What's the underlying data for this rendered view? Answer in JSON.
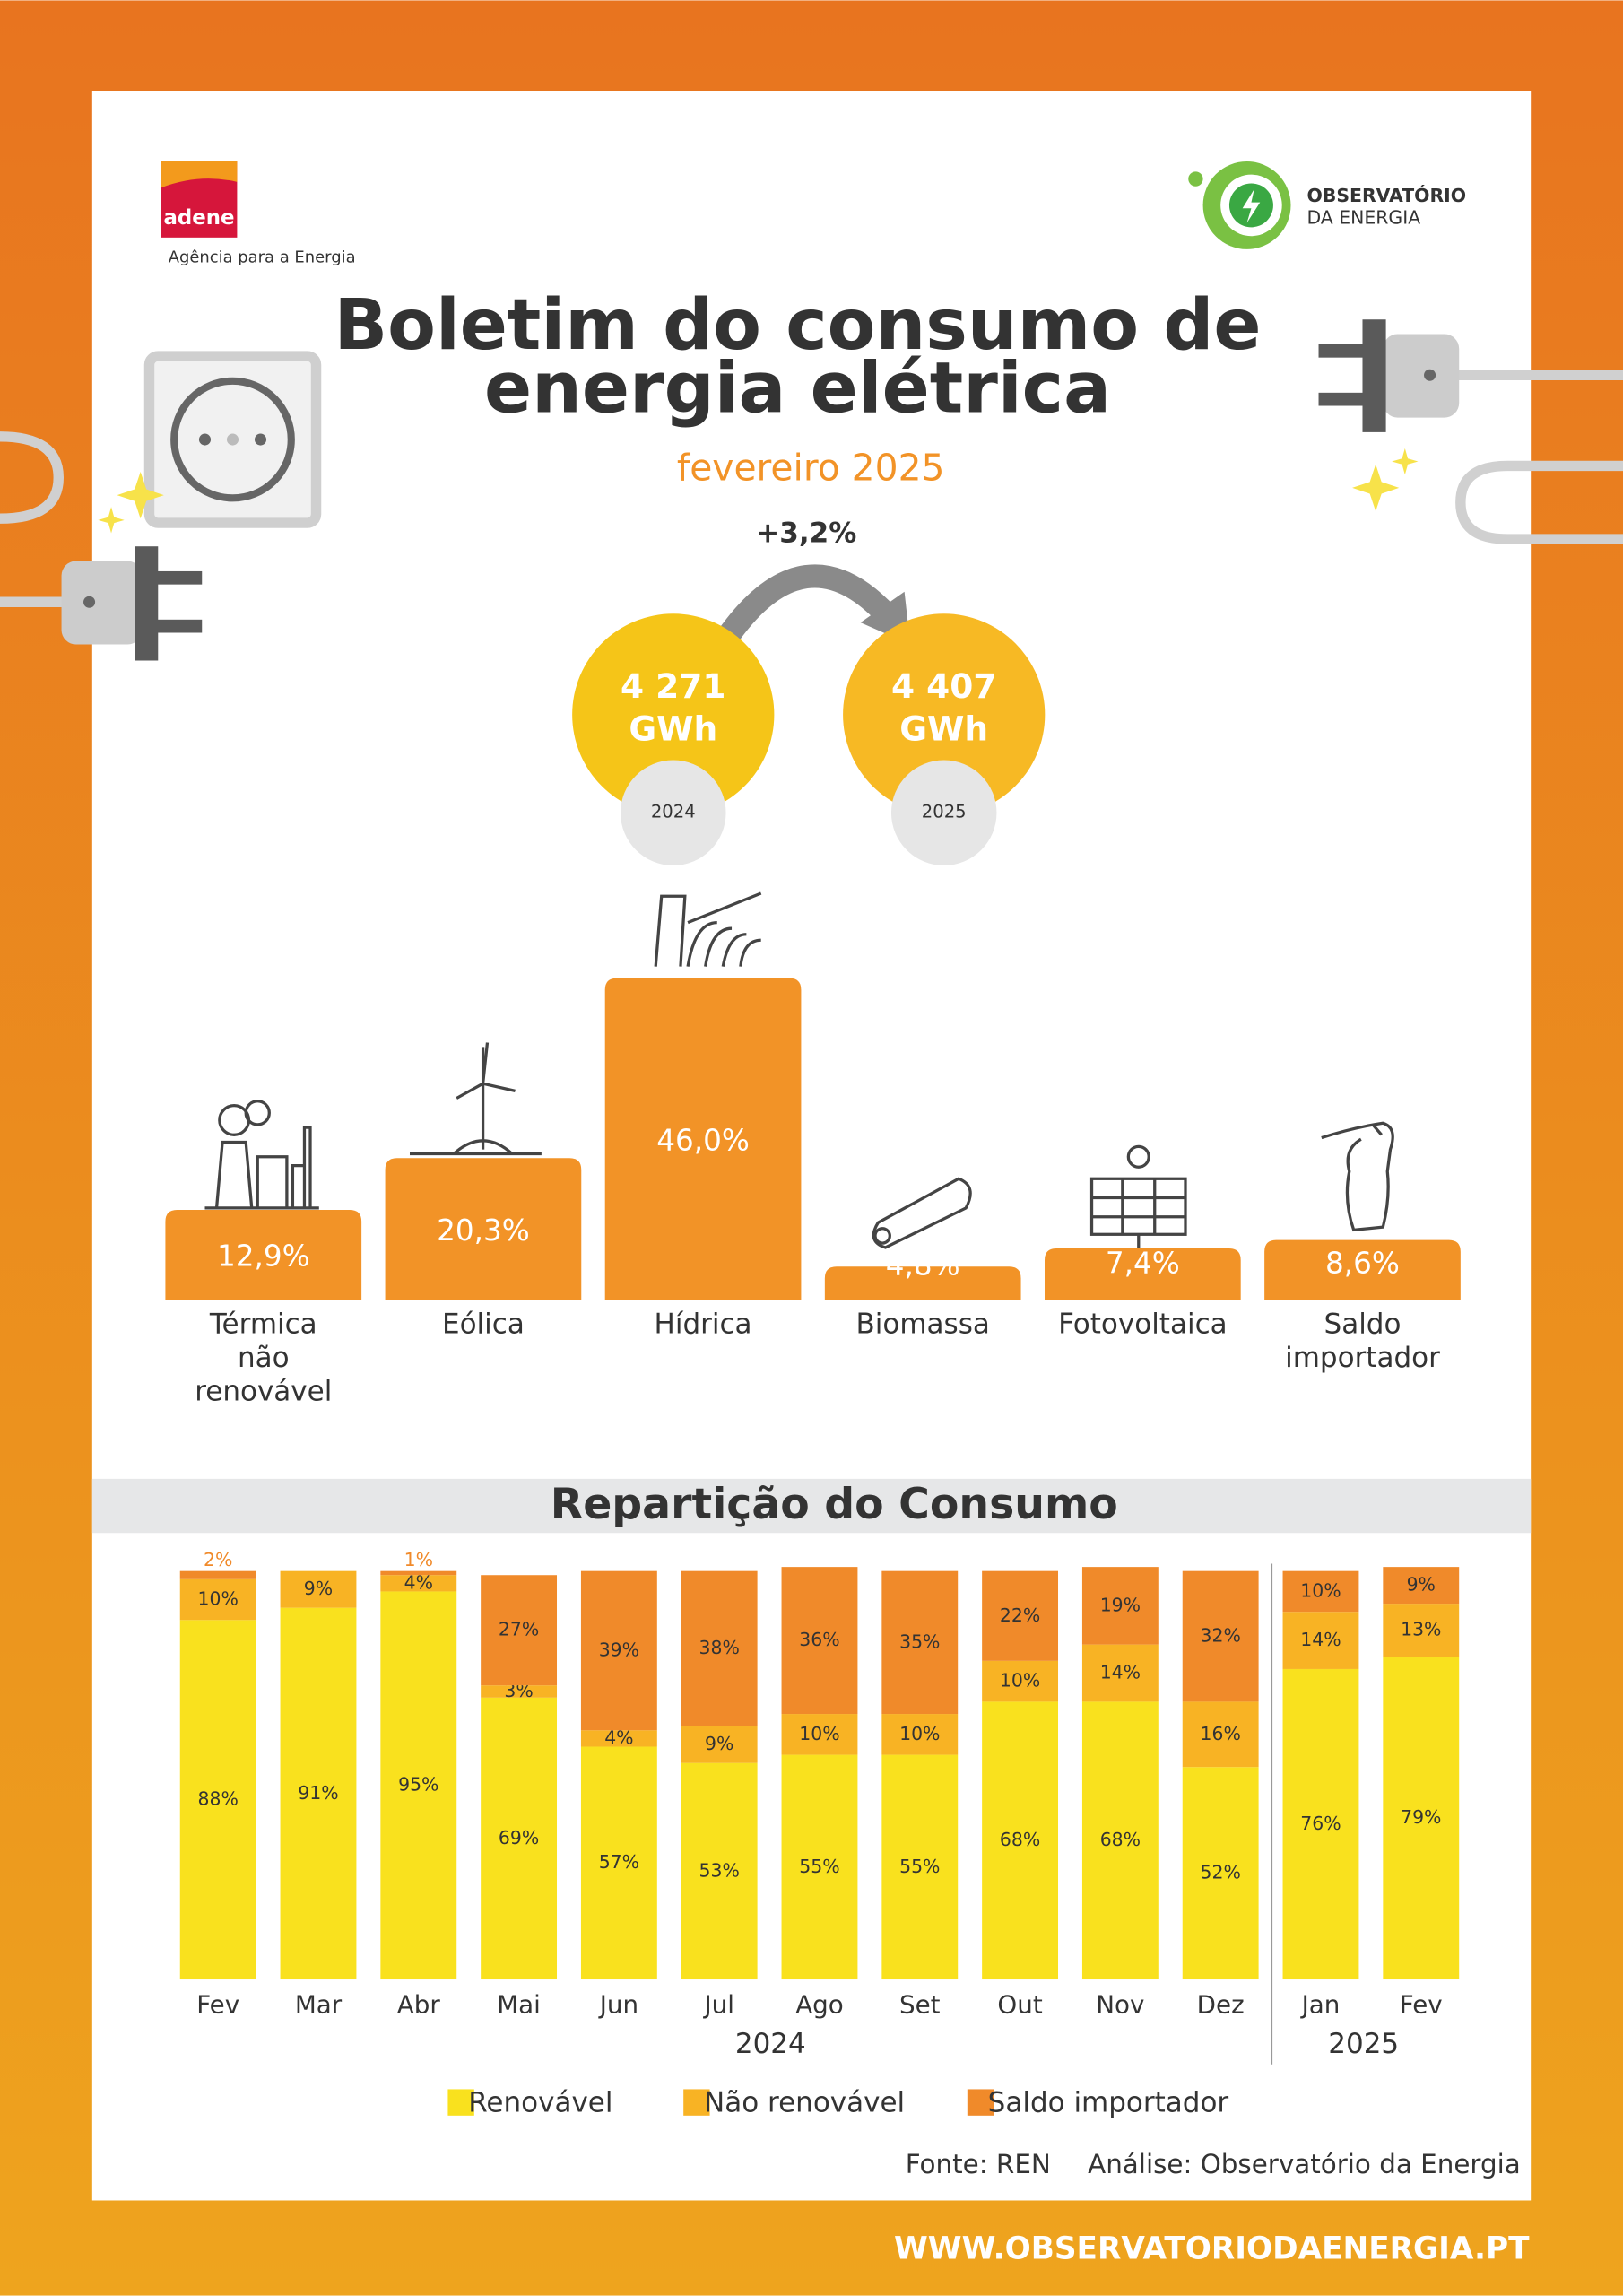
{
  "header": {
    "logo_left": "adene",
    "logo_left_caption": "Agência para a Energia",
    "logo_right_line1": "OBSERVATÓRIO",
    "logo_right_line2": "DA ENERGIA",
    "title_line1": "Boletim do consumo de",
    "title_line2": "energia elétrica",
    "subtitle": "fevereiro 2025"
  },
  "comparison": {
    "change": "+3,2%",
    "items": [
      {
        "value": "4 271",
        "unit": "GWh",
        "year": "2024"
      },
      {
        "value": "4 407",
        "unit": "GWh",
        "year": "2025"
      }
    ]
  },
  "chart_data": [
    {
      "type": "bar",
      "categories": [
        "Térmica não renovável",
        "Eólica",
        "Hídrica",
        "Biomassa",
        "Fotovoltaica",
        "Saldo importador"
      ],
      "values": [
        12.9,
        20.3,
        46.0,
        4.8,
        7.4,
        8.6
      ],
      "value_labels": [
        "12,9%",
        "20,3%",
        "46,0%",
        "4,8%",
        "7,4%",
        "8,6%"
      ],
      "color": "#f29327"
    },
    {
      "type": "stacked_bar",
      "title": "Repartição do Consumo",
      "ylim": [
        0,
        100
      ],
      "groups": [
        {
          "label": "2024",
          "categories": [
            "Fev",
            "Mar",
            "Abr",
            "Mai",
            "Jun",
            "Jul",
            "Ago",
            "Set",
            "Out",
            "Nov",
            "Dez"
          ]
        },
        {
          "label": "2025",
          "categories": [
            "Jan",
            "Fev"
          ]
        }
      ],
      "series": [
        {
          "name": "Renovável",
          "color": "#f9e11e",
          "values": [
            88,
            91,
            95,
            69,
            57,
            53,
            55,
            55,
            68,
            68,
            52,
            76,
            79
          ],
          "value_labels": [
            "88%",
            "91%",
            "95%",
            "69%",
            "57%",
            "53%",
            "55%",
            "55%",
            "68%",
            "68%",
            "52%",
            "76%",
            "79%"
          ]
        },
        {
          "name": "Não renovável",
          "color": "#f8b324",
          "values": [
            10,
            9,
            4,
            3,
            4,
            9,
            10,
            10,
            10,
            14,
            16,
            14,
            13
          ],
          "value_labels": [
            "10%",
            "9%",
            "4%",
            "3%",
            "4%",
            "9%",
            "10%",
            "10%",
            "10%",
            "14%",
            "16%",
            "14%",
            "13%"
          ]
        },
        {
          "name": "Saldo importador",
          "color": "#f08a2a",
          "values": [
            2,
            null,
            1,
            27,
            39,
            38,
            36,
            35,
            22,
            19,
            32,
            10,
            9
          ],
          "value_labels": [
            "2%",
            null,
            "1%",
            "27%",
            "39%",
            "38%",
            "36%",
            "35%",
            "22%",
            "19%",
            "32%",
            "10%",
            "9%"
          ]
        }
      ]
    }
  ],
  "footer": {
    "source": "Fonte: REN",
    "analysis": "Análise: Observatório da Energia",
    "url": "WWW.OBSERVATORIODAENERGIA.PT"
  }
}
